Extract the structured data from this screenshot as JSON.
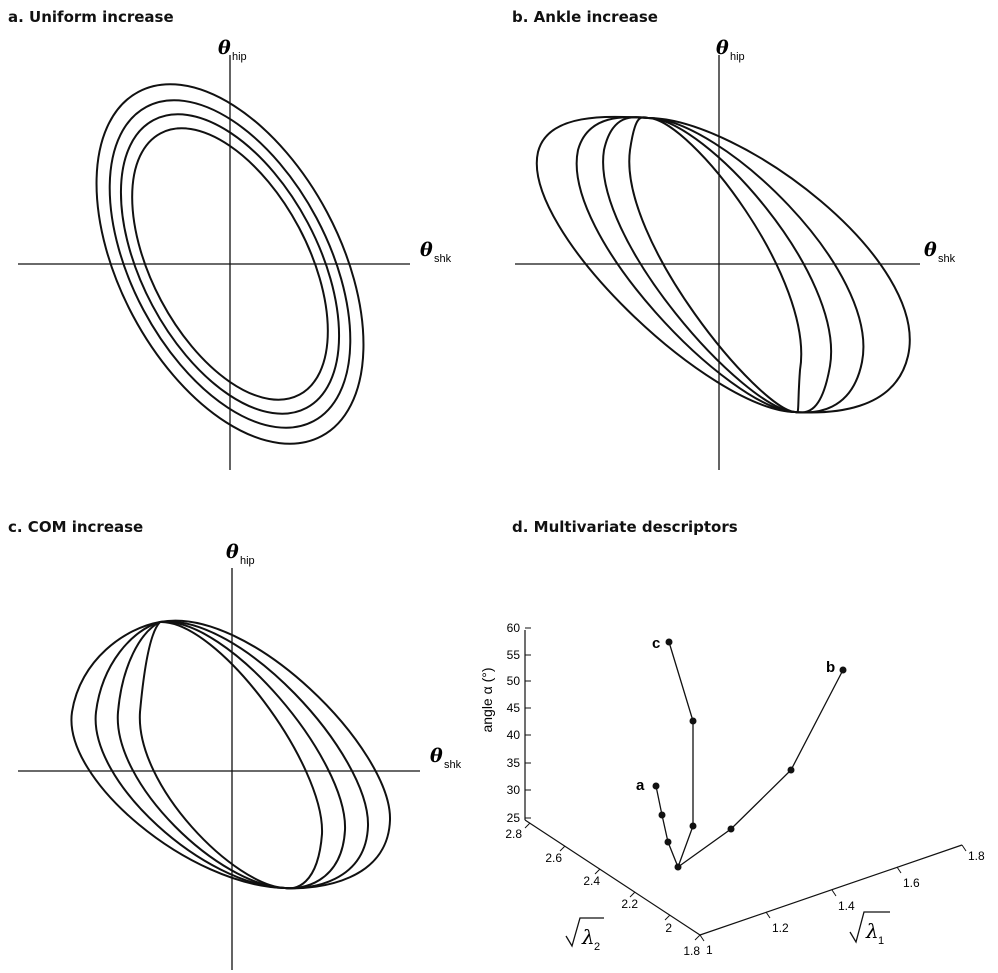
{
  "panels": {
    "a": {
      "title": "a. Uniform increase"
    },
    "b": {
      "title": "b. Ankle increase"
    },
    "c": {
      "title": "c. COM increase"
    },
    "d": {
      "title": "d. Multivariate descriptors"
    }
  },
  "axes": {
    "theta_symbol": "θ",
    "hip_sub": "hip",
    "shk_sub": "shk"
  },
  "descriptor_plot": {
    "z_label": "angle α (°)",
    "z_ticks": [
      "25",
      "30",
      "35",
      "40",
      "45",
      "50",
      "55",
      "60"
    ],
    "lambda1_label": "λ",
    "lambda1_sub": "1",
    "lambda1_ticks": [
      "1",
      "1.2",
      "1.4",
      "1.6",
      "1.8"
    ],
    "lambda2_label": "λ",
    "lambda2_sub": "2",
    "lambda2_ticks": [
      "1.8",
      "2",
      "2.2",
      "2.4",
      "2.6",
      "2.8"
    ],
    "trajectory_labels": {
      "a": "a",
      "b": "b",
      "c": "c"
    }
  },
  "colors": {
    "ink": "#111111",
    "background": "#ffffff"
  }
}
